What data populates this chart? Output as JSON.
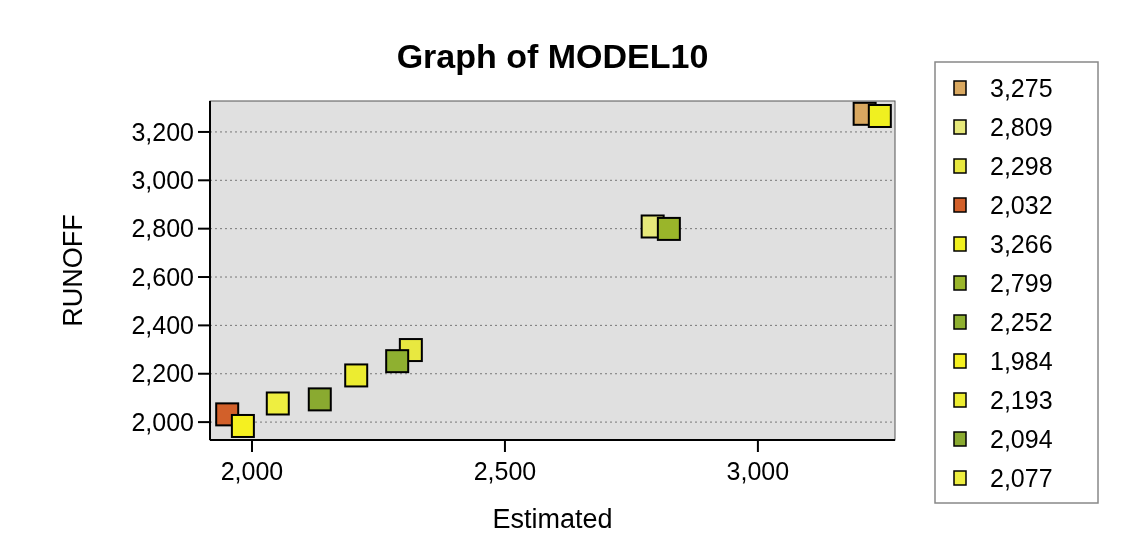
{
  "chart_data": {
    "type": "scatter",
    "title": "Graph of MODEL10",
    "xlabel": "Estimated",
    "ylabel": "RUNOFF",
    "xlim": [
      1917,
      3271
    ],
    "ylim": [
      1926,
      3328
    ],
    "xticks": [
      {
        "value": 2000,
        "label": "2,000"
      },
      {
        "value": 2500,
        "label": "2,500"
      },
      {
        "value": 3000,
        "label": "3,000"
      }
    ],
    "yticks": [
      {
        "value": 2000,
        "label": "2,000"
      },
      {
        "value": 2200,
        "label": "2,200"
      },
      {
        "value": 2400,
        "label": "2,400"
      },
      {
        "value": 2600,
        "label": "2,600"
      },
      {
        "value": 2800,
        "label": "2,800"
      },
      {
        "value": 3000,
        "label": "3,000"
      },
      {
        "value": 3200,
        "label": "3,200"
      }
    ],
    "grid": "y",
    "legend": "right",
    "marker": "square",
    "series": [
      {
        "name": "3,275",
        "color": "#d9a860",
        "x": [
          3211
        ],
        "values": [
          3275
        ]
      },
      {
        "name": "2,809",
        "color": "#e6e87a",
        "x": [
          2792
        ],
        "values": [
          2809
        ]
      },
      {
        "name": "2,298",
        "color": "#e8e840",
        "x": [
          2314
        ],
        "values": [
          2298
        ]
      },
      {
        "name": "2,032",
        "color": "#d2602a",
        "x": [
          1951
        ],
        "values": [
          2032
        ]
      },
      {
        "name": "3,266",
        "color": "#f0f020",
        "x": [
          3241
        ],
        "values": [
          3266
        ]
      },
      {
        "name": "2,799",
        "color": "#9ab52a",
        "x": [
          2824
        ],
        "values": [
          2799
        ]
      },
      {
        "name": "2,252",
        "color": "#8fb030",
        "x": [
          2287
        ],
        "values": [
          2252
        ]
      },
      {
        "name": "1,984",
        "color": "#f5f020",
        "x": [
          1982
        ],
        "values": [
          1984
        ]
      },
      {
        "name": "2,193",
        "color": "#ecec30",
        "x": [
          2206
        ],
        "values": [
          2193
        ]
      },
      {
        "name": "2,094",
        "color": "#8aaa30",
        "x": [
          2134
        ],
        "values": [
          2094
        ]
      },
      {
        "name": "2,077",
        "color": "#eeee40",
        "x": [
          2051
        ],
        "values": [
          2077
        ]
      }
    ]
  }
}
